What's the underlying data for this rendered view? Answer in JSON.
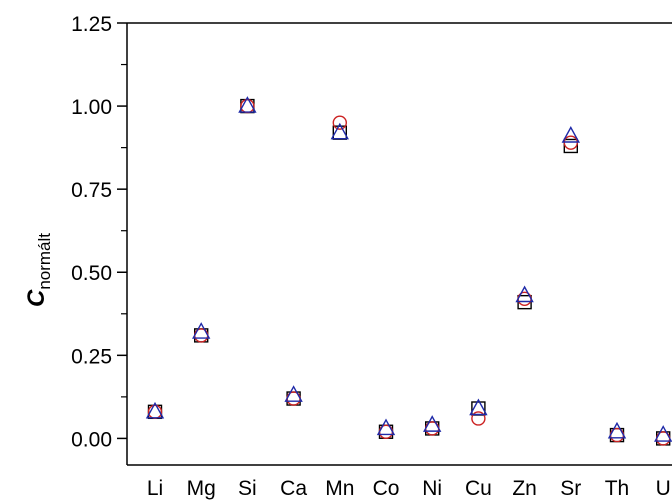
{
  "chart_data": {
    "type": "scatter",
    "title": "",
    "xlabel": "",
    "ylabel": {
      "main": "C",
      "sub": "normált"
    },
    "ylim": [
      -0.08,
      1.25
    ],
    "yticks": [
      "0.00",
      "0.25",
      "0.50",
      "0.75",
      "1.00",
      "1.25"
    ],
    "categories": [
      "Li",
      "Mg",
      "Si",
      "Ca",
      "Mn",
      "Co",
      "Ni",
      "Cu",
      "Zn",
      "Sr",
      "Th",
      "U"
    ],
    "series": [
      {
        "marker": "square",
        "color": "#000000",
        "values": [
          0.08,
          0.31,
          1.0,
          0.12,
          0.92,
          0.02,
          0.03,
          0.09,
          0.41,
          0.88,
          0.01,
          0.0
        ]
      },
      {
        "marker": "circle",
        "color": "#cc2222",
        "values": [
          0.08,
          0.31,
          1.0,
          0.12,
          0.95,
          0.02,
          0.03,
          0.06,
          0.42,
          0.89,
          0.01,
          0.0
        ]
      },
      {
        "marker": "triangle",
        "color": "#1f2aa8",
        "values": [
          0.08,
          0.32,
          1.0,
          0.13,
          0.92,
          0.03,
          0.04,
          0.09,
          0.43,
          0.91,
          0.02,
          0.01
        ]
      }
    ],
    "grid": false,
    "legend": "none"
  }
}
